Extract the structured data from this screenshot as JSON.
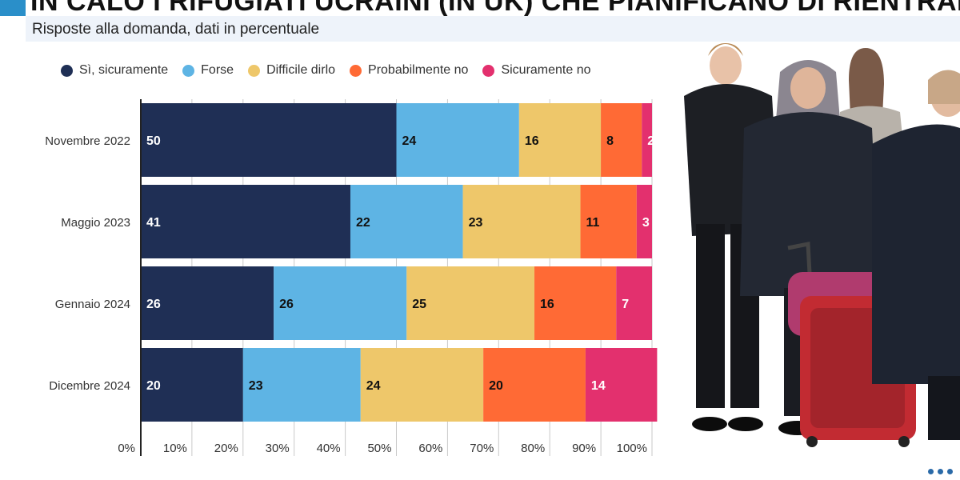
{
  "header": {
    "title": "IN CALO I RIFUGIATI UCRAINI (IN UK) CHE PIANIFICANO DI RIENTRARE",
    "subtitle": "Risposte alla domanda, dati in percentuale"
  },
  "colors": {
    "accent": "#2a8fc9",
    "si_sicuramente": "#1f2f55",
    "forse": "#5eb4e4",
    "difficile": "#eec76a",
    "probabilmente_no": "#ff6a35",
    "sicuramente_no": "#e3306e"
  },
  "chart_data": {
    "type": "bar",
    "orientation": "horizontal",
    "stacked": true,
    "title": "IN CALO I RIFUGIATI UCRAINI (IN UK) CHE PIANIFICANO DI RIENTRARE",
    "subtitle": "Risposte alla domanda, dati in percentuale",
    "categories": [
      "Novembre 2022",
      "Maggio 2023",
      "Gennaio 2024",
      "Dicembre 2024"
    ],
    "series": [
      {
        "name": "Sì, sicuramente",
        "color": "#1f2f55",
        "label_color": "#ffffff",
        "values": [
          50,
          41,
          26,
          20
        ]
      },
      {
        "name": "Forse",
        "color": "#5eb4e4",
        "label_color": "#111111",
        "values": [
          24,
          22,
          26,
          23
        ]
      },
      {
        "name": "Difficile dirlo",
        "color": "#eec76a",
        "label_color": "#111111",
        "values": [
          16,
          23,
          25,
          24
        ]
      },
      {
        "name": "Probabilmente no",
        "color": "#ff6a35",
        "label_color": "#111111",
        "values": [
          8,
          11,
          16,
          20
        ]
      },
      {
        "name": "Sicuramente no",
        "color": "#e3306e",
        "label_color": "#ffffff",
        "values": [
          2,
          3,
          7,
          14
        ]
      }
    ],
    "x_ticks": [
      "0%",
      "10%",
      "20%",
      "30%",
      "40%",
      "50%",
      "60%",
      "70%",
      "80%",
      "90%",
      "100%"
    ],
    "xlim": [
      0,
      100
    ],
    "legend": "top",
    "grid": true
  }
}
